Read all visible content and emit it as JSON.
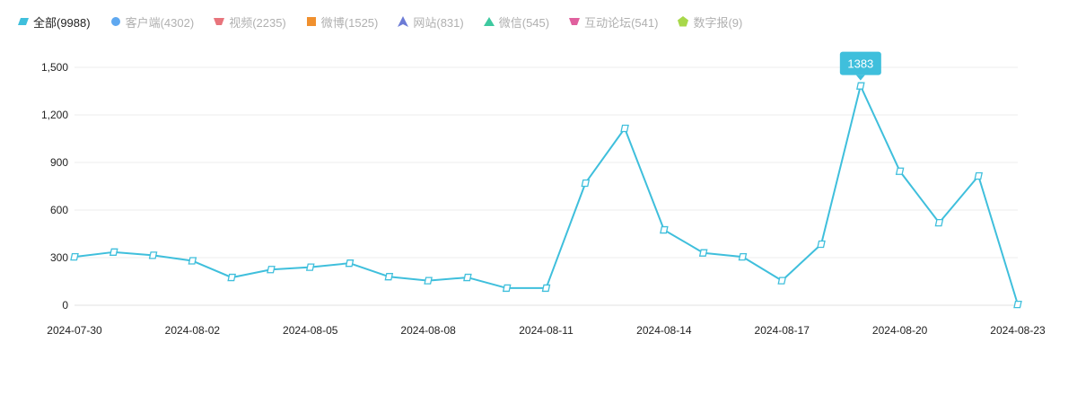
{
  "legend": [
    {
      "label": "全部(9988)",
      "color": "#3fbfdc",
      "shape": "parallelogram",
      "active": true
    },
    {
      "label": "客户端(4302)",
      "color": "#5fa8f0",
      "shape": "circle",
      "active": false
    },
    {
      "label": "视频(2235)",
      "color": "#e8747c",
      "shape": "trapezoid",
      "active": false
    },
    {
      "label": "微博(1525)",
      "color": "#f0902e",
      "shape": "square",
      "active": false
    },
    {
      "label": "网站(831)",
      "color": "#6c7bd6",
      "shape": "arrow-triangle",
      "active": false
    },
    {
      "label": "微信(545)",
      "color": "#3ec9a0",
      "shape": "triangle",
      "active": false
    },
    {
      "label": "互动论坛(541)",
      "color": "#e0609e",
      "shape": "trapezoid",
      "active": false
    },
    {
      "label": "数字报(9)",
      "color": "#a8d84a",
      "shape": "pentagon",
      "active": false
    }
  ],
  "chart_data": {
    "type": "line",
    "x": [
      "2024-07-30",
      "2024-07-31",
      "2024-08-01",
      "2024-08-02",
      "2024-08-03",
      "2024-08-04",
      "2024-08-05",
      "2024-08-06",
      "2024-08-07",
      "2024-08-08",
      "2024-08-09",
      "2024-08-10",
      "2024-08-11",
      "2024-08-12",
      "2024-08-13",
      "2024-08-14",
      "2024-08-15",
      "2024-08-16",
      "2024-08-17",
      "2024-08-18",
      "2024-08-19",
      "2024-08-20",
      "2024-08-21",
      "2024-08-22",
      "2024-08-23"
    ],
    "x_tick_labels": [
      "2024-07-30",
      "2024-08-02",
      "2024-08-05",
      "2024-08-08",
      "2024-08-11",
      "2024-08-14",
      "2024-08-17",
      "2024-08-20",
      "2024-08-23"
    ],
    "series": [
      {
        "name": "全部(9988)",
        "color": "#3fbfdc",
        "values": [
          305,
          335,
          315,
          280,
          175,
          225,
          240,
          265,
          180,
          155,
          175,
          108,
          108,
          770,
          1115,
          475,
          330,
          305,
          155,
          385,
          1383,
          845,
          520,
          815,
          5
        ]
      }
    ],
    "ylim": [
      0,
      1500
    ],
    "y_ticks": [
      0,
      300,
      600,
      900,
      1200,
      1500
    ],
    "y_tick_labels": [
      "0",
      "300",
      "600",
      "900",
      "1,200",
      "1,500"
    ],
    "grid": true,
    "tooltip": {
      "index": 20,
      "text": "1383"
    }
  }
}
